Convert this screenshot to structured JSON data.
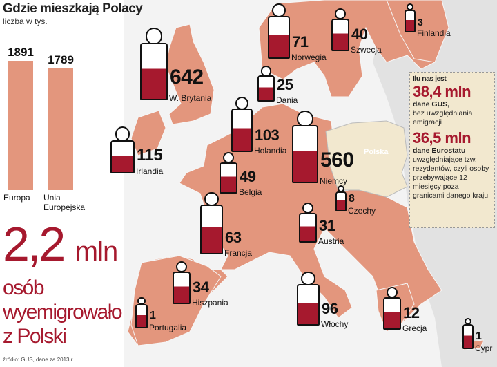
{
  "header": {
    "title": "Gdzie mieszkają Polacy",
    "subtitle": "liczba w tys."
  },
  "chart_data": {
    "type": "bar",
    "categories": [
      "Europa",
      "Unia Europejska"
    ],
    "values": [
      1891,
      1789
    ],
    "unit": "tys.",
    "ylim": [
      0,
      1891
    ]
  },
  "summary": {
    "value": "2,2",
    "unit": "mln",
    "line1": "osób",
    "line2": "wyemigrowało",
    "line3": "z Polski"
  },
  "source": "źródło: GUS, dane za 2013 r.",
  "colors": {
    "map_country": "#e3967d",
    "poland": "#f2e8cf",
    "accent_red": "#a6192e",
    "background": "#e6e6e6"
  },
  "poland_label": "Polska",
  "info": {
    "heading": "Ilu nas jest",
    "gus_value": "38,4 mln",
    "gus_source": "dane GUS,",
    "gus_note": "bez uwzględniania emigracji",
    "eurostat_value": "36,5 mln",
    "eurostat_source": "dane Eurostatu",
    "eurostat_note": "uwzględniające tzw. rezydentów, czyli osoby przebywające 12 miesięcy poza granicami danego kraju"
  },
  "countries": [
    {
      "name": "W. Brytania",
      "value": "642"
    },
    {
      "name": "Norwegia",
      "value": "71"
    },
    {
      "name": "Szwecja",
      "value": "40"
    },
    {
      "name": "Finlandia",
      "value": "3"
    },
    {
      "name": "Dania",
      "value": "25"
    },
    {
      "name": "Irlandia",
      "value": "115"
    },
    {
      "name": "Holandia",
      "value": "103"
    },
    {
      "name": "Niemcy",
      "value": "560"
    },
    {
      "name": "Belgia",
      "value": "49"
    },
    {
      "name": "Czechy",
      "value": "8"
    },
    {
      "name": "Francja",
      "value": "63"
    },
    {
      "name": "Austria",
      "value": "31"
    },
    {
      "name": "Hiszpania",
      "value": "34"
    },
    {
      "name": "Portugalia",
      "value": "1"
    },
    {
      "name": "Włochy",
      "value": "96"
    },
    {
      "name": "Grecja",
      "value": "12"
    },
    {
      "name": "Cypr",
      "value": "1"
    }
  ]
}
